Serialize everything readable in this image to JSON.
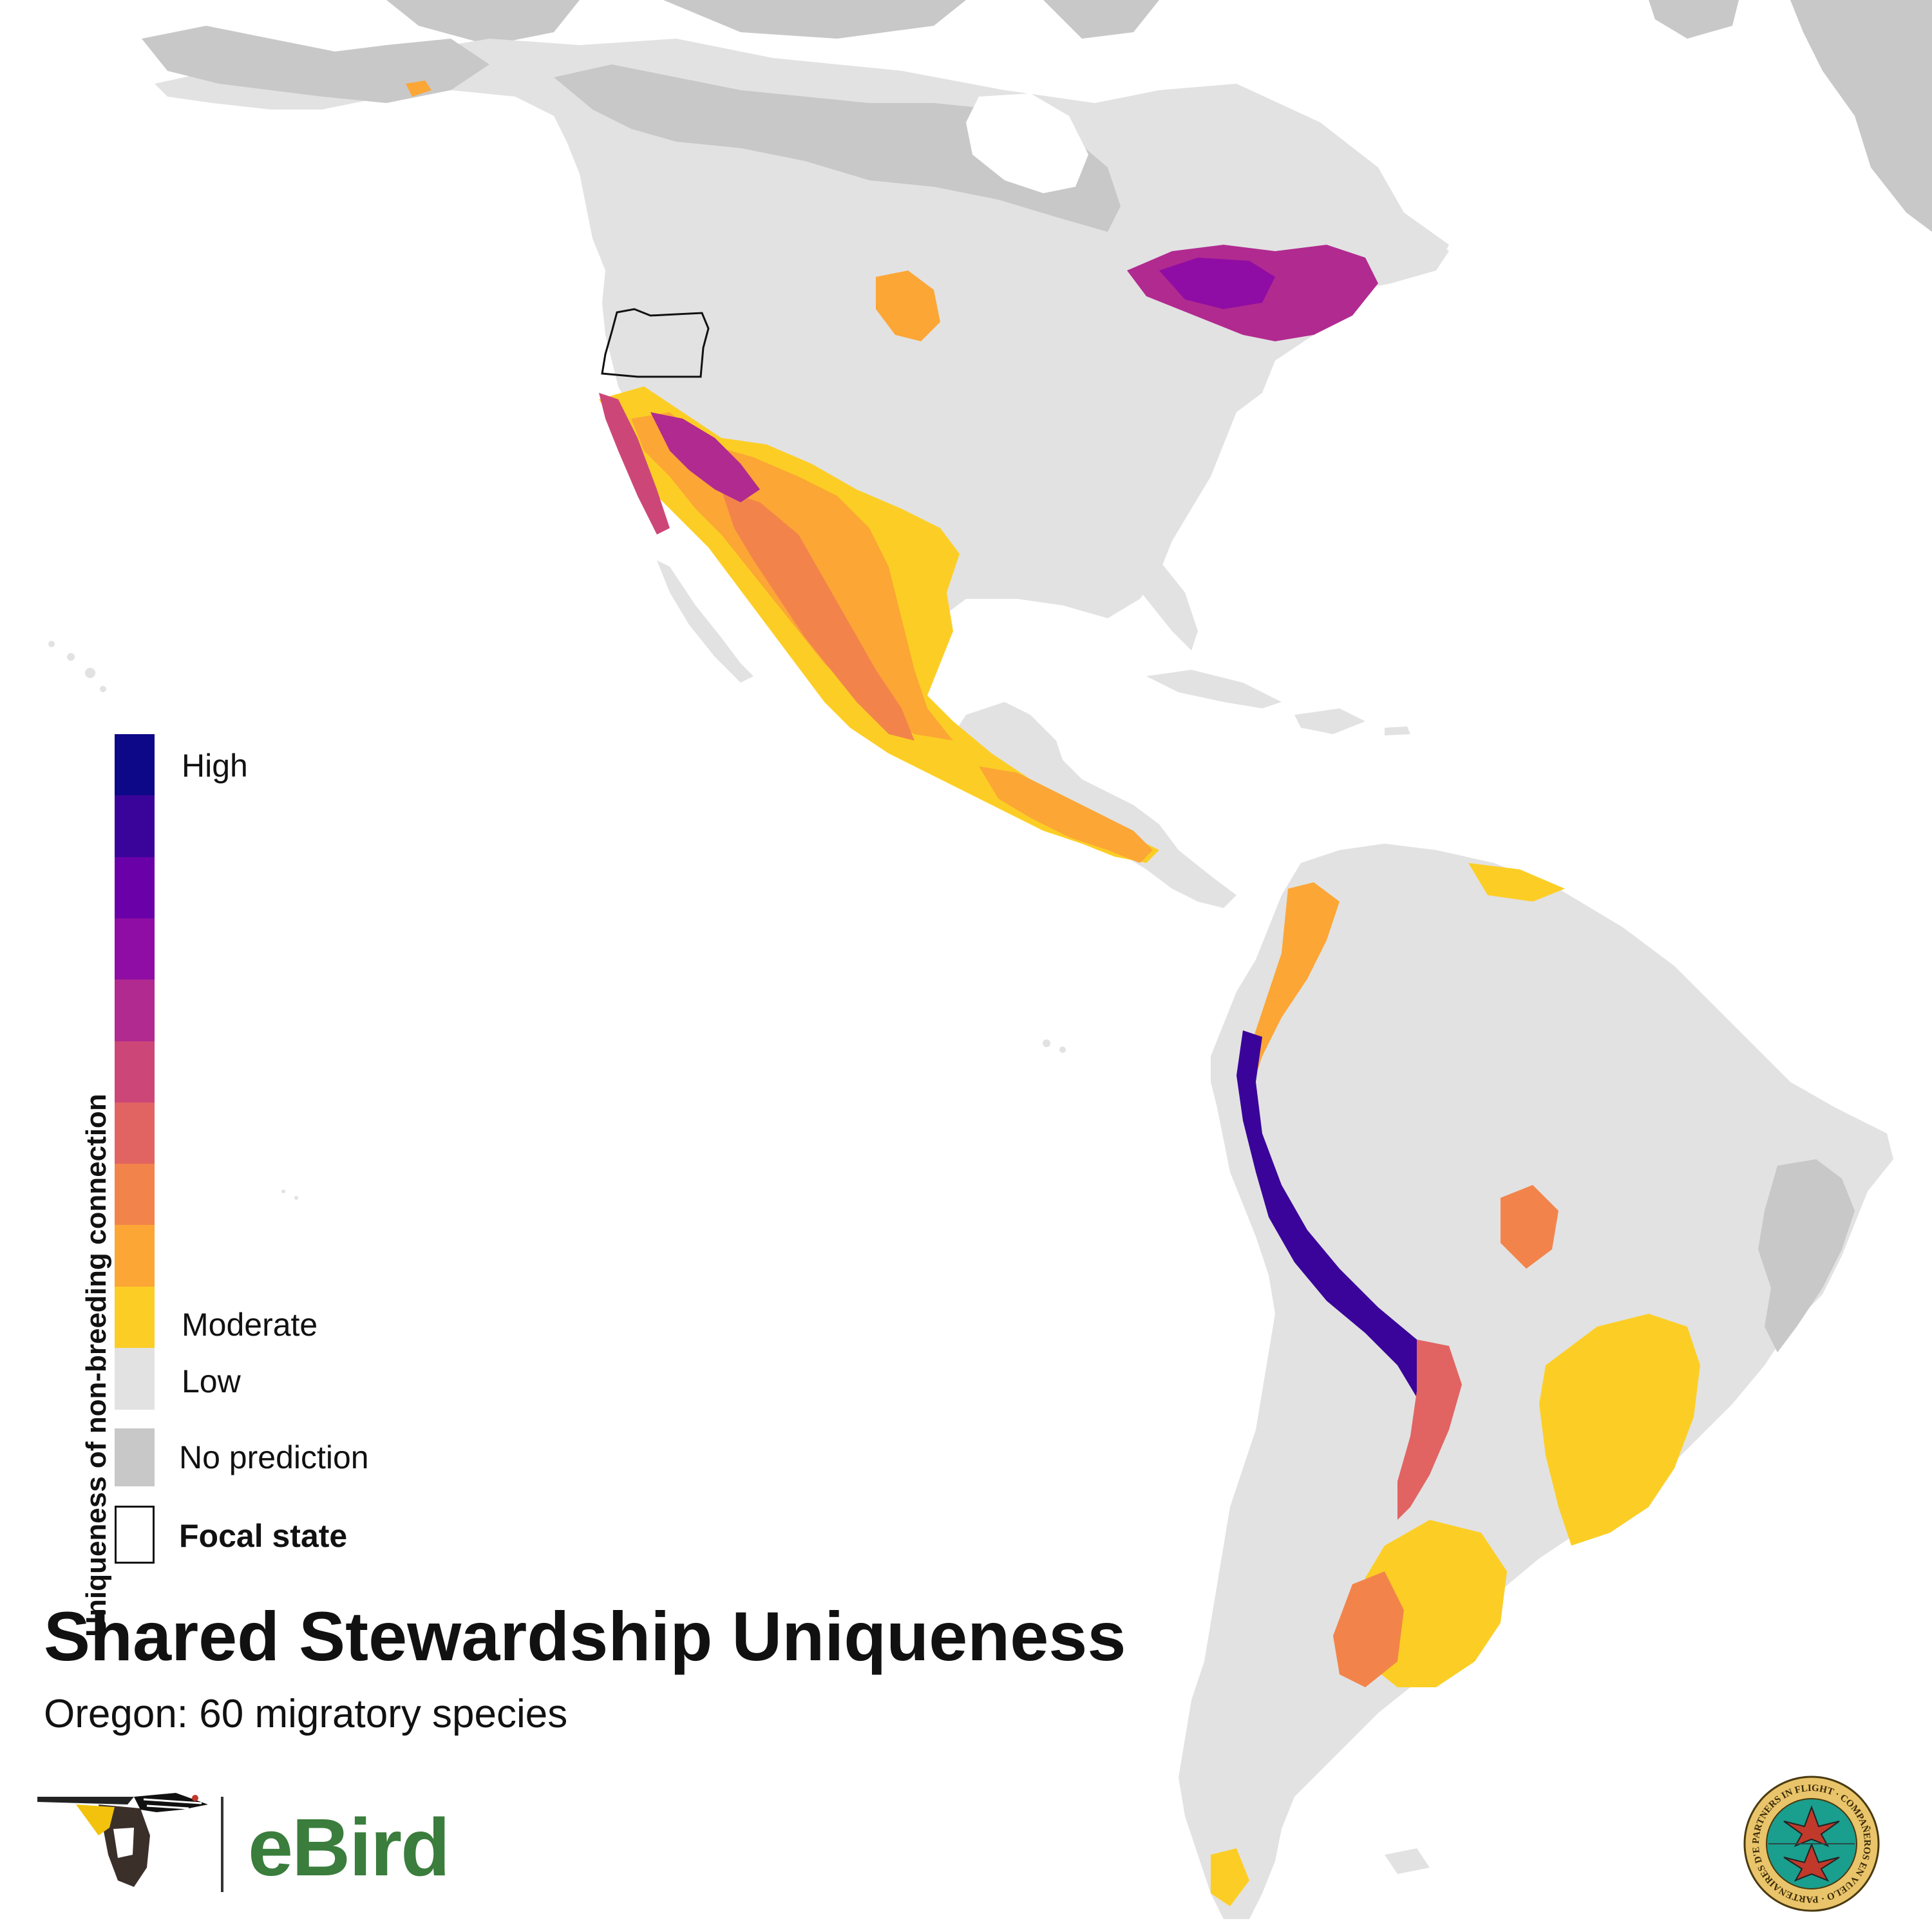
{
  "legend": {
    "axis_title": "Uniqueness of non-breeding connection",
    "label_high": "High",
    "label_moderate": "Moderate",
    "label_low": "Low",
    "label_no_prediction": "No prediction",
    "label_focal_state": "Focal state",
    "scale_colors": [
      "#0d0887",
      "#3a049a",
      "#6a00a8",
      "#8f0da4",
      "#b12a90",
      "#cc4778",
      "#e16462",
      "#f2844b",
      "#fca636",
      "#fcce25"
    ],
    "low_color": "#e2e2e2",
    "no_prediction_color": "#c8c8c8"
  },
  "title": "Shared Stewardship Uniqueness",
  "subtitle": "Oregon: 60 migratory species",
  "logos": {
    "ebird_wordmark": "eBird",
    "ebird_icon": "ebird-bird-icon",
    "partners_seal": "partners-in-flight-seal",
    "partners_seal_text": "PARTNERS IN FLIGHT · COMPAÑEROS EN VUELO · PARTENAIRES D'ENVOL"
  },
  "map": {
    "focal_state": "Oregon",
    "colors": {
      "background": "#ffffff",
      "land_low": "#e2e2e2",
      "no_prediction": "#c8c8c8",
      "borders": "#f6f6f6"
    }
  }
}
